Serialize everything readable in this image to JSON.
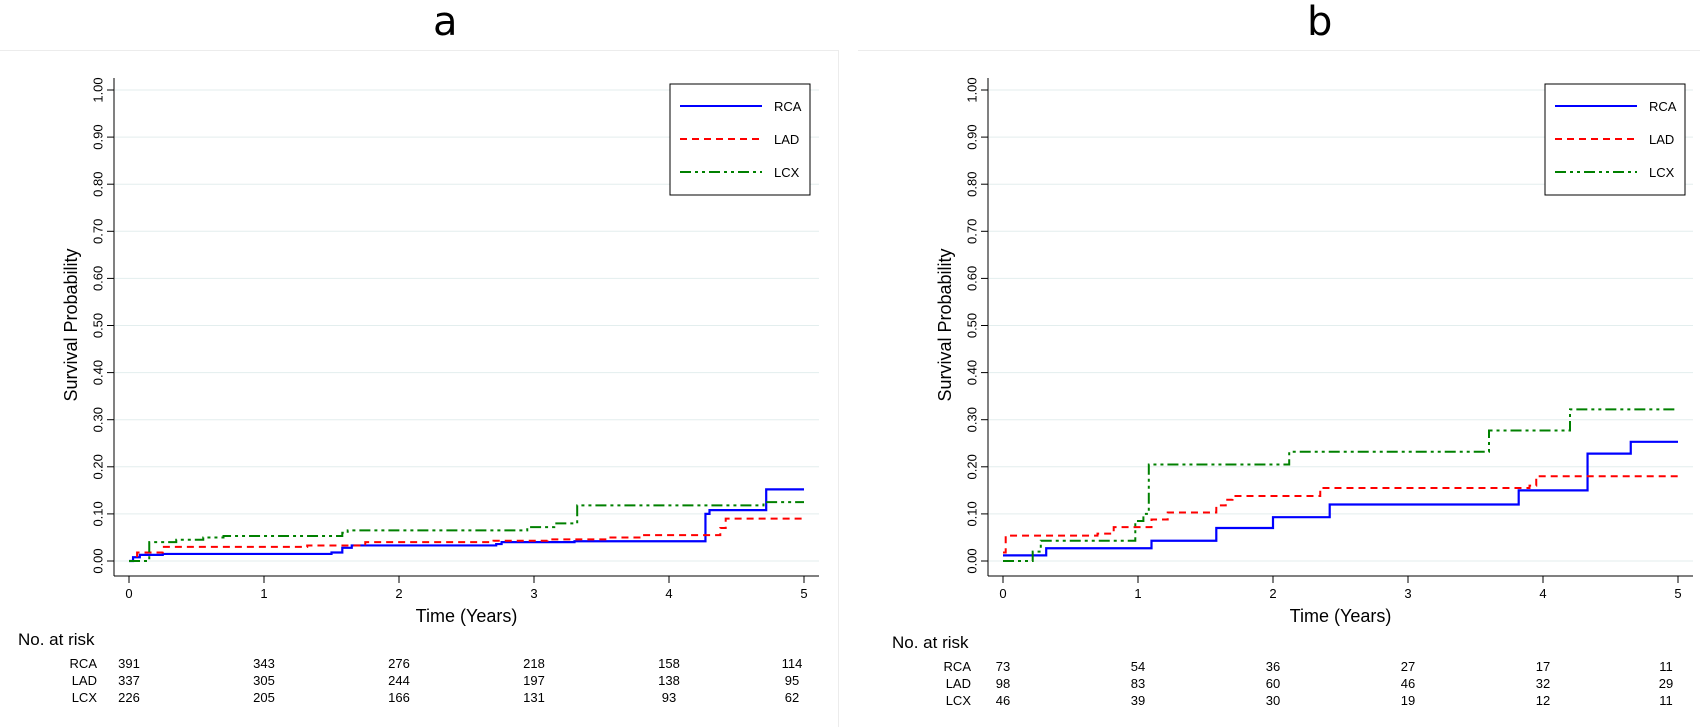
{
  "panels": [
    {
      "letter": "a",
      "risk_heading": "No. at risk",
      "risk_table": [
        {
          "group": "RCA",
          "counts": [
            "391",
            "343",
            "276",
            "218",
            "158",
            "114"
          ]
        },
        {
          "group": "LAD",
          "counts": [
            "337",
            "305",
            "244",
            "197",
            "138",
            "95"
          ]
        },
        {
          "group": "LCX",
          "counts": [
            "226",
            "205",
            "166",
            "131",
            "93",
            "62"
          ]
        }
      ]
    },
    {
      "letter": "b",
      "risk_heading": "No. at risk",
      "risk_table": [
        {
          "group": "RCA",
          "counts": [
            "73",
            "54",
            "36",
            "27",
            "17",
            "11"
          ]
        },
        {
          "group": "LAD",
          "counts": [
            "98",
            "83",
            "60",
            "46",
            "32",
            "29"
          ]
        },
        {
          "group": "LCX",
          "counts": [
            "46",
            "39",
            "30",
            "19",
            "12",
            "11"
          ]
        }
      ]
    }
  ],
  "chart_data": [
    {
      "type": "line",
      "step": true,
      "xlabel": "Time (Years)",
      "ylabel": "Survival Probability",
      "xlim": [
        0,
        5
      ],
      "ylim": [
        0,
        1
      ],
      "xticks": [
        "0",
        "1",
        "2",
        "3",
        "4",
        "5"
      ],
      "yticks": [
        "0.00",
        "0.10",
        "0.20",
        "0.30",
        "0.40",
        "0.50",
        "0.60",
        "0.70",
        "0.80",
        "0.90",
        "1.00"
      ],
      "grid": true,
      "legend": "top-right",
      "series": [
        {
          "name": "RCA",
          "color": "#0000ff",
          "dash": "solid",
          "x": [
            0,
            0.03,
            0.08,
            0.25,
            1.5,
            1.58,
            1.65,
            2.72,
            2.76,
            3.3,
            4.27,
            4.3,
            4.72,
            5
          ],
          "y": [
            0,
            0.008,
            0.013,
            0.015,
            0.018,
            0.028,
            0.033,
            0.036,
            0.04,
            0.042,
            0.1,
            0.108,
            0.152,
            0.152
          ]
        },
        {
          "name": "LAD",
          "color": "#ff0000",
          "dash": "dash",
          "x": [
            0,
            0.06,
            0.25,
            1.32,
            1.75,
            2.7,
            3.1,
            3.55,
            3.8,
            4.38,
            4.42,
            5
          ],
          "y": [
            0,
            0.018,
            0.03,
            0.033,
            0.04,
            0.043,
            0.046,
            0.05,
            0.055,
            0.07,
            0.09,
            0.09
          ]
        },
        {
          "name": "LCX",
          "color": "#008000",
          "dash": "dashdot",
          "x": [
            0,
            0.15,
            0.35,
            0.55,
            0.7,
            1.58,
            1.62,
            2.95,
            3.15,
            3.32,
            4.3,
            4.7,
            5
          ],
          "y": [
            0,
            0.04,
            0.045,
            0.05,
            0.053,
            0.06,
            0.065,
            0.072,
            0.08,
            0.118,
            0.118,
            0.125,
            0.125
          ]
        }
      ]
    },
    {
      "type": "line",
      "step": true,
      "xlabel": "Time (Years)",
      "ylabel": "Survival Probability",
      "xlim": [
        0,
        5
      ],
      "ylim": [
        0,
        1
      ],
      "xticks": [
        "0",
        "1",
        "2",
        "3",
        "4",
        "5"
      ],
      "yticks": [
        "0.00",
        "0.10",
        "0.20",
        "0.30",
        "0.40",
        "0.50",
        "0.60",
        "0.70",
        "0.80",
        "0.90",
        "1.00"
      ],
      "grid": true,
      "legend": "top-right",
      "series": [
        {
          "name": "RCA",
          "color": "#0000ff",
          "dash": "solid",
          "x": [
            0,
            0.32,
            1.1,
            1.58,
            2.0,
            2.42,
            3.82,
            4.33,
            4.65,
            5
          ],
          "y": [
            0.012,
            0.027,
            0.043,
            0.07,
            0.093,
            0.12,
            0.15,
            0.228,
            0.253,
            0.253
          ]
        },
        {
          "name": "LAD",
          "color": "#ff0000",
          "dash": "dash",
          "x": [
            0,
            0.02,
            0.7,
            0.82,
            1.1,
            1.22,
            1.58,
            1.65,
            1.7,
            2.05,
            2.35,
            3.9,
            3.95,
            5
          ],
          "y": [
            0.018,
            0.054,
            0.058,
            0.072,
            0.088,
            0.103,
            0.118,
            0.13,
            0.138,
            0.138,
            0.155,
            0.16,
            0.18,
            0.18
          ]
        },
        {
          "name": "LCX",
          "color": "#008000",
          "dash": "dashdot",
          "x": [
            0,
            0.22,
            0.28,
            0.8,
            0.98,
            1.04,
            1.08,
            2.12,
            3.6,
            4.2,
            5
          ],
          "y": [
            0,
            0.02,
            0.043,
            0.043,
            0.085,
            0.1,
            0.205,
            0.232,
            0.277,
            0.322,
            0.322
          ]
        }
      ]
    }
  ]
}
